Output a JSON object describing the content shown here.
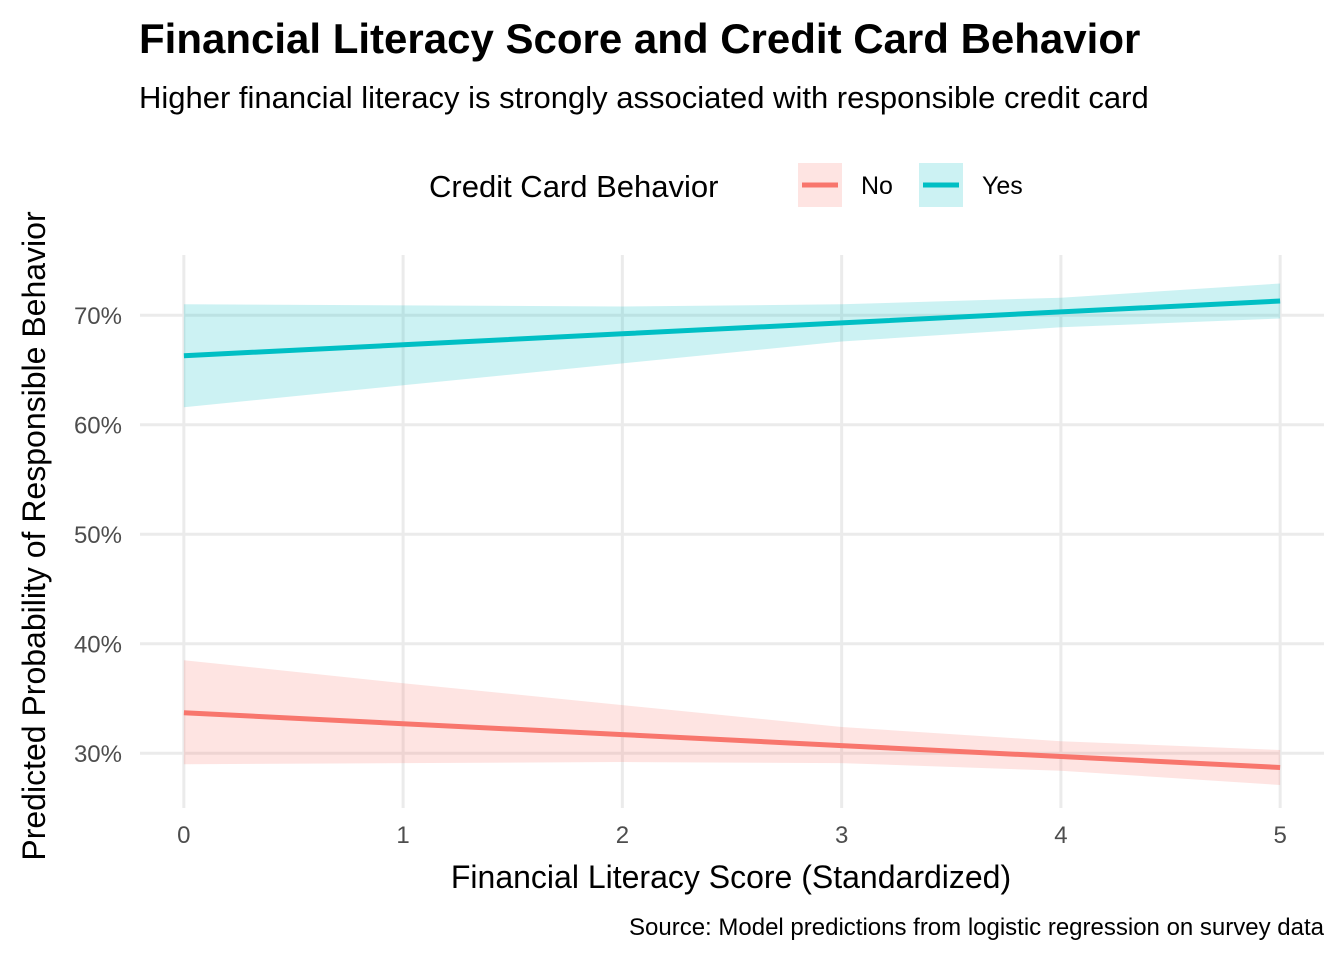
{
  "chart_data": {
    "type": "line",
    "title": "Financial Literacy Score and Credit Card Behavior",
    "subtitle": "Higher financial literacy is strongly associated with responsible credit card",
    "xlabel": "Financial Literacy Score (Standardized)",
    "ylabel": "Predicted Probability of Responsible Behavior",
    "caption": "Source: Model predictions from logistic regression on survey data",
    "legend": {
      "title": "Credit Card Behavior",
      "position": "top"
    },
    "xlim": [
      -0.2,
      5.2
    ],
    "ylim": [
      0.25,
      0.755
    ],
    "xticks": [
      0,
      1,
      2,
      3,
      4,
      5
    ],
    "xtick_labels": [
      "0",
      "1",
      "2",
      "3",
      "4",
      "5"
    ],
    "yticks": [
      0.3,
      0.4,
      0.5,
      0.6,
      0.7
    ],
    "ytick_labels": [
      "30%",
      "40%",
      "50%",
      "60%",
      "70%"
    ],
    "grid": true,
    "x": [
      0,
      1,
      2,
      3,
      4,
      5
    ],
    "series": [
      {
        "name": "No",
        "color": "#F8766D",
        "values": [
          0.337,
          0.327,
          0.317,
          0.307,
          0.297,
          0.287
        ],
        "lower": [
          0.29,
          0.291,
          0.292,
          0.291,
          0.284,
          0.271
        ],
        "upper": [
          0.385,
          0.364,
          0.344,
          0.324,
          0.311,
          0.303
        ]
      },
      {
        "name": "Yes",
        "color": "#00BFC4",
        "values": [
          0.663,
          0.673,
          0.683,
          0.693,
          0.703,
          0.713
        ],
        "lower": [
          0.616,
          0.636,
          0.656,
          0.676,
          0.689,
          0.697
        ],
        "upper": [
          0.71,
          0.709,
          0.708,
          0.71,
          0.716,
          0.729
        ]
      }
    ]
  }
}
